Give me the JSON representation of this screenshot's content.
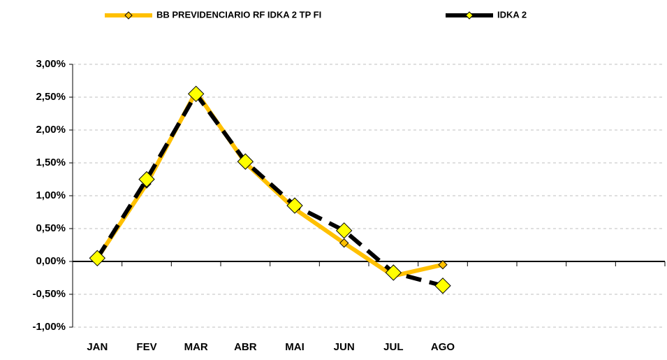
{
  "chart_data": {
    "type": "line",
    "categories": [
      "JAN",
      "FEV",
      "MAR",
      "ABR",
      "MAI",
      "JUN",
      "JUL",
      "AGO",
      null,
      null,
      null,
      null
    ],
    "series": [
      {
        "name": "BB PREVIDENCIARIO RF IDKA 2 TP FI",
        "color": "#ffc000",
        "marker_color": "#ffc000",
        "values": [
          0.05,
          1.18,
          2.58,
          1.5,
          0.8,
          0.28,
          -0.22,
          -0.05,
          null,
          null,
          null,
          null
        ]
      },
      {
        "name": "IDKA 2",
        "color": "#000000",
        "marker_color": "#ffff00",
        "values": [
          0.05,
          1.25,
          2.55,
          1.52,
          0.85,
          0.47,
          -0.17,
          -0.37,
          null,
          null,
          null,
          null
        ]
      }
    ],
    "ylim": [
      -1,
      3
    ],
    "yticks": [
      {
        "value": -1,
        "label": "-1,00%"
      },
      {
        "value": -0.5,
        "label": "-0,50%"
      },
      {
        "value": 0,
        "label": "0,00%"
      },
      {
        "value": 0.5,
        "label": "0,50%"
      },
      {
        "value": 1,
        "label": "1,00%"
      },
      {
        "value": 1.5,
        "label": "1,50%"
      },
      {
        "value": 2,
        "label": "2,00%"
      },
      {
        "value": 2.5,
        "label": "2,50%"
      },
      {
        "value": 3,
        "label": "3,00%"
      }
    ],
    "grid": true,
    "legend": "top"
  }
}
